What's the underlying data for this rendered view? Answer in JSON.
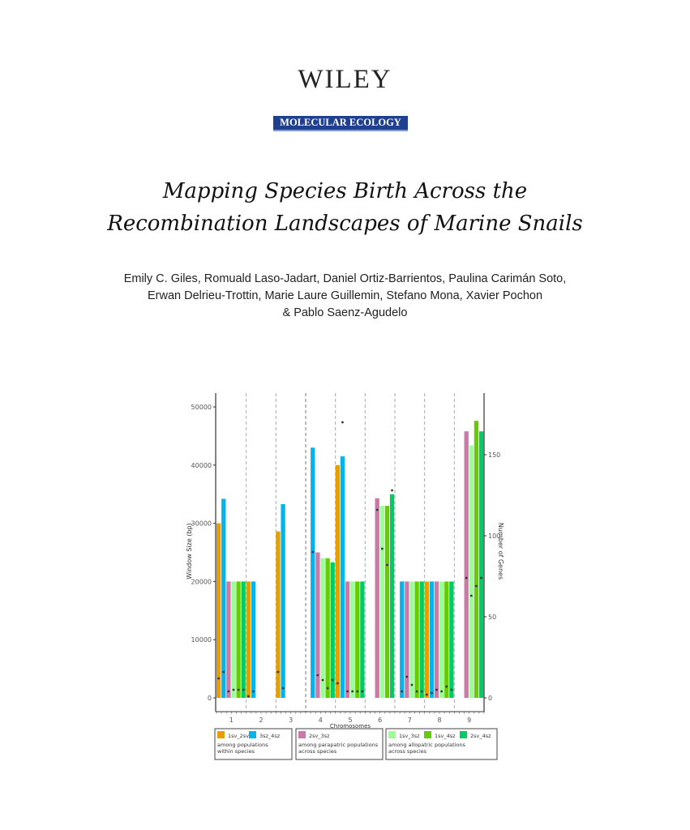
{
  "publisher": "WILEY",
  "journal": "MOLECULAR ECOLOGY",
  "title_lines": [
    "Mapping Species Birth Across the",
    "Recombination Landscapes of Marine Snails"
  ],
  "author_lines": [
    "Emily C. Giles, Romuald Laso-Jadart, Daniel Ortiz-Barrientos, Paulina Carimán Soto,",
    "Erwan Delrieu-Trottin, Marie Laure Guillemin, Stefano Mona, Xavier Pochon",
    "& Pablo Saenz-Agudelo"
  ],
  "chart_data": {
    "type": "bar",
    "xlabel": "Chromosomes",
    "ylabel": "Window Size (bp)",
    "y2label": "Number of Genes",
    "ylim": [
      0,
      52000
    ],
    "y2lim": [
      0,
      173
    ],
    "yticks": [
      "0",
      "10000",
      "20000",
      "30000",
      "40000",
      "50000"
    ],
    "y2ticks": [
      "0",
      "50",
      "100",
      "150"
    ],
    "categories": [
      "1",
      "2",
      "3",
      "4",
      "5",
      "6",
      "7",
      "8",
      "9"
    ],
    "series": [
      {
        "name": "1sv_2sv",
        "color": "#e69f00",
        "window_size": [
          30000,
          20000,
          28600,
          null,
          40000,
          null,
          null,
          20000,
          null
        ],
        "genes": [
          12,
          1,
          16,
          null,
          9,
          null,
          null,
          2,
          null
        ]
      },
      {
        "name": "3sz_4sz",
        "color": "#00b4ef",
        "window_size": [
          34200,
          20000,
          33300,
          43000,
          41500,
          null,
          20000,
          20000,
          null
        ],
        "genes": [
          16,
          4,
          6,
          90,
          170,
          null,
          4,
          3,
          null
        ]
      },
      {
        "name": "2sv_3sz",
        "color": "#cc79a7",
        "window_size": [
          20000,
          null,
          null,
          25000,
          20000,
          34300,
          20000,
          20000,
          45800
        ],
        "genes": [
          4,
          null,
          null,
          14,
          4,
          116,
          13,
          5,
          74
        ]
      },
      {
        "name": "1sv_3sz",
        "color": "#99ff99",
        "window_size": [
          20000,
          null,
          null,
          24000,
          20000,
          33000,
          20000,
          20000,
          43400
        ],
        "genes": [
          5,
          null,
          null,
          11,
          4,
          92,
          8,
          4,
          63
        ]
      },
      {
        "name": "1sv_4sz",
        "color": "#66cc00",
        "window_size": [
          20000,
          null,
          null,
          24000,
          20000,
          33000,
          20000,
          20000,
          47600
        ],
        "genes": [
          5,
          null,
          null,
          6,
          4,
          82,
          4,
          7,
          69
        ]
      },
      {
        "name": "2sv_4sz",
        "color": "#00cc66",
        "window_size": [
          20000,
          null,
          null,
          23300,
          20000,
          35000,
          20000,
          20000,
          45800
        ],
        "genes": [
          5,
          null,
          null,
          11,
          4,
          128,
          4,
          5,
          74
        ]
      }
    ],
    "legend_position": "bottom",
    "legend_groups": [
      {
        "series": [
          "1sv_2sv",
          "3sz_4sz"
        ],
        "caption": [
          "among populations",
          "within species"
        ]
      },
      {
        "series": [
          "2sv_3sz"
        ],
        "caption": [
          "among parapatric populations",
          "across species"
        ]
      },
      {
        "series": [
          "1sv_3sz",
          "1sv_4sz",
          "2sv_4sz"
        ],
        "caption": [
          "among allopatric populations",
          "across species"
        ]
      }
    ],
    "grid": false
  }
}
